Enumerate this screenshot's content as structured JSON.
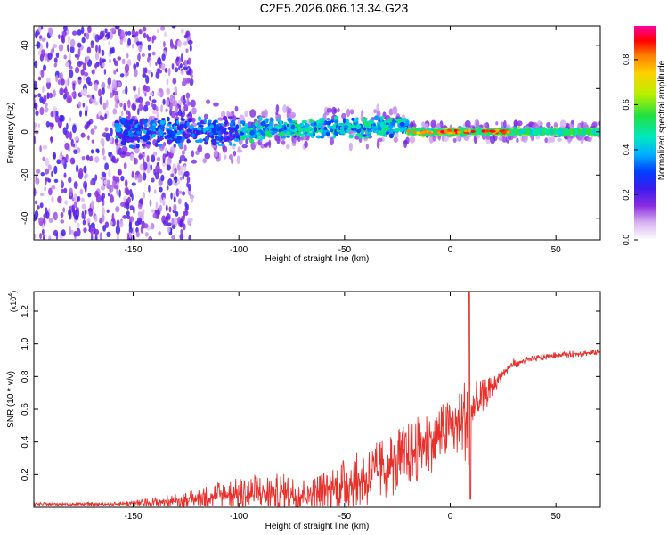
{
  "title": "C2E5.2026.086.13.34.G23",
  "colors": {
    "snr_line": "#e8302c",
    "axis": "#000000",
    "colormap": [
      "#ffffff",
      "#d8b4f0",
      "#8a2be2",
      "#3a1cf0",
      "#0040ff",
      "#00b0ff",
      "#00e8c0",
      "#20e040",
      "#b8f000",
      "#ffd000",
      "#ff8000",
      "#ff0000",
      "#ff00a0"
    ]
  },
  "chart_data": [
    {
      "type": "heatmap",
      "name": "spectrogram",
      "title": "C2E5.2026.086.13.34.G23",
      "xlabel": "Height of straight line (km)",
      "ylabel": "Frequency (Hz)",
      "xlim": [
        -197,
        71
      ],
      "ylim": [
        -50,
        49
      ],
      "xticks": [
        -150,
        -100,
        -50,
        0,
        50
      ],
      "xtick_labels": [
        "-150",
        "-100",
        "-50",
        "0",
        "50"
      ],
      "yticks": [
        -40,
        -20,
        0,
        20,
        40
      ],
      "ytick_labels": [
        "-40",
        "-20",
        "0",
        "20",
        "40"
      ],
      "colorbar": {
        "label": "Normalized spectral amplitude",
        "range": [
          0.0,
          0.95
        ],
        "ticks": [
          0.0,
          0.2,
          0.4,
          0.6,
          0.8
        ],
        "tick_labels": [
          "0.0",
          "0.2",
          "0.4",
          "0.6",
          "0.8"
        ]
      },
      "features": [
        {
          "x_from": -197,
          "x_to": -130,
          "freq_center": 0,
          "freq_spread": 49,
          "amplitude": 0.15,
          "note": "scattered noise"
        },
        {
          "x_from": -155,
          "x_to": -100,
          "freq_center": 0,
          "freq_spread": 12,
          "amplitude": 0.25
        },
        {
          "x_from": -100,
          "x_to": -20,
          "freq_center": 2,
          "freq_spread": 8,
          "amplitude": 0.45
        },
        {
          "x_from": -20,
          "x_to": 71,
          "freq_center": 0,
          "freq_spread": 3,
          "amplitude": 0.5
        },
        {
          "x_from": -20,
          "x_to": 25,
          "freq_center": 0,
          "freq_spread": 1,
          "amplitude": 0.85,
          "note": "peak band"
        }
      ]
    },
    {
      "type": "line",
      "name": "snr",
      "xlabel": "Height of straight line (km)",
      "ylabel": "SNR (10 * v/v)",
      "y_scale_label": "(x10",
      "y_scale_exponent": "4",
      "xlim": [
        -197,
        71
      ],
      "ylim": [
        0,
        1.32
      ],
      "xticks": [
        -150,
        -100,
        -50,
        0,
        50
      ],
      "xtick_labels": [
        "-150",
        "-100",
        "-50",
        "0",
        "50"
      ],
      "yticks": [
        0.2,
        0.4,
        0.6,
        0.8,
        1.0,
        1.2
      ],
      "ytick_labels": [
        "0.2",
        "0.4",
        "0.6",
        "0.8",
        "1.0",
        "1.2"
      ],
      "envelope": {
        "x": [
          -197,
          -180,
          -160,
          -140,
          -120,
          -110,
          -100,
          -90,
          -80,
          -70,
          -60,
          -50,
          -40,
          -30,
          -20,
          -10,
          0,
          5,
          8,
          9,
          10,
          12,
          15,
          20,
          25,
          30,
          40,
          50,
          60,
          71
        ],
        "mean": [
          0.02,
          0.02,
          0.02,
          0.03,
          0.05,
          0.07,
          0.08,
          0.09,
          0.09,
          0.08,
          0.1,
          0.14,
          0.18,
          0.24,
          0.32,
          0.4,
          0.48,
          0.52,
          0.56,
          0.1,
          0.58,
          0.62,
          0.66,
          0.74,
          0.82,
          0.88,
          0.91,
          0.93,
          0.94,
          0.95
        ],
        "amp": [
          0.01,
          0.01,
          0.01,
          0.03,
          0.06,
          0.09,
          0.1,
          0.12,
          0.12,
          0.1,
          0.12,
          0.16,
          0.18,
          0.2,
          0.2,
          0.2,
          0.18,
          0.2,
          0.3,
          0.06,
          0.22,
          0.18,
          0.12,
          0.06,
          0.04,
          0.03,
          0.02,
          0.02,
          0.02,
          0.02
        ]
      },
      "spike": {
        "x": 9,
        "y": 1.32
      },
      "dip": {
        "x": 9.5,
        "y": 0.05
      }
    }
  ]
}
